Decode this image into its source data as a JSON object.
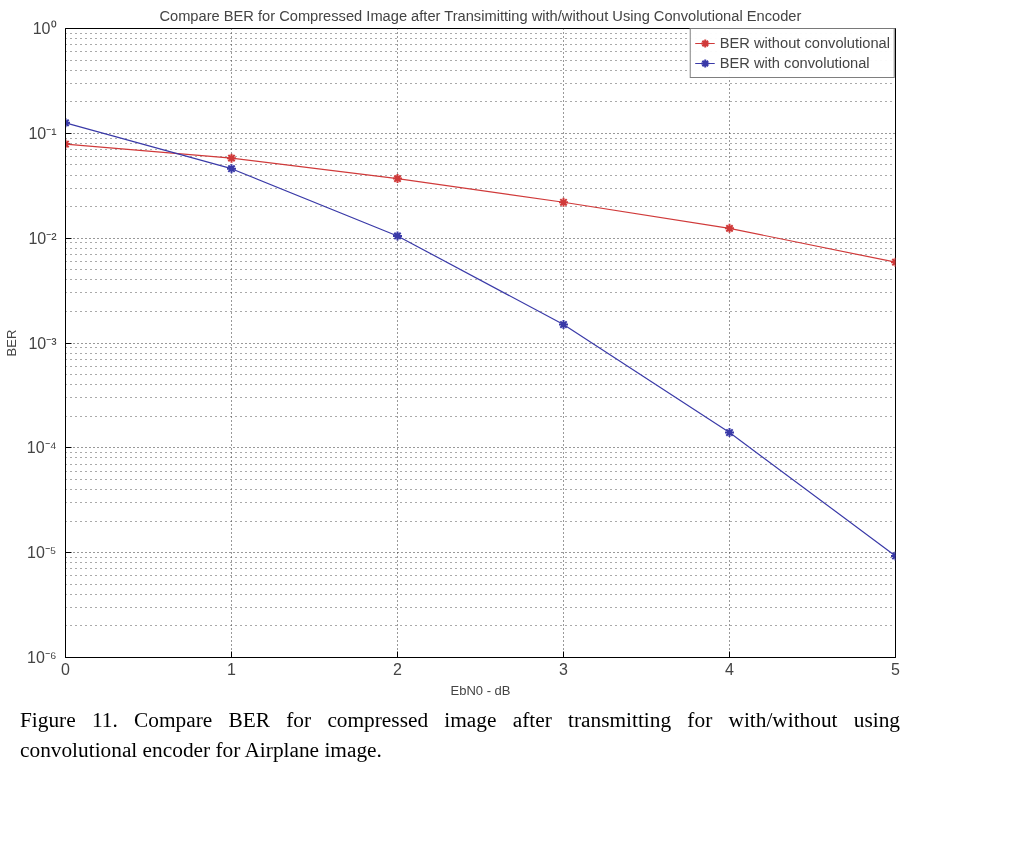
{
  "chart_data": {
    "type": "line",
    "title": "Compare BER for Compressed Image after Transimitting with/without Using Convolutional Encoder",
    "xlabel": "EbN0 - dB",
    "ylabel": "BER",
    "x": [
      0,
      1,
      2,
      3,
      4,
      5
    ],
    "series": [
      {
        "name": "BER without convolutional",
        "color": "#d03a3a",
        "values": [
          0.079,
          0.058,
          0.037,
          0.022,
          0.0124,
          0.0059
        ]
      },
      {
        "name": "BER with convolutional",
        "color": "#3a3aa8",
        "values": [
          0.126,
          0.046,
          0.0105,
          0.0015,
          0.00014,
          9.3e-06
        ]
      }
    ],
    "log": "y",
    "xlim": [
      0,
      5
    ],
    "xticks": [
      0,
      1,
      2,
      3,
      4,
      5
    ],
    "ylim": [
      1e-06,
      1
    ],
    "yticks": [
      {
        "value": 1e-06,
        "label": "10⁻⁶"
      },
      {
        "value": 1e-05,
        "label": "10⁻⁵"
      },
      {
        "value": 0.0001,
        "label": "10⁻⁴"
      },
      {
        "value": 0.001,
        "label": "10⁻³"
      },
      {
        "value": 0.01,
        "label": "10⁻²"
      },
      {
        "value": 0.1,
        "label": "10⁻¹"
      },
      {
        "value": 1,
        "label": "10⁰"
      }
    ],
    "grid": true,
    "legend": "top right",
    "marker": "cross",
    "line_style": "solid",
    "annotations": [
      "Figure 11. Compare BER for compressed image after transmitting for with/without using  convolutional encoder for Airplane image."
    ]
  }
}
